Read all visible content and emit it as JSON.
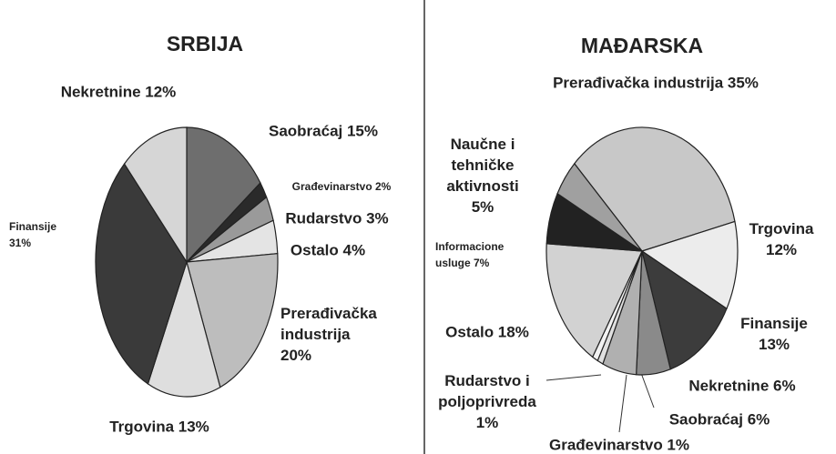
{
  "chart_data": [
    {
      "type": "pie",
      "title": "SRBIJA",
      "labels": [
        "Saobraćaj 15%",
        "Građevinarstvo 2%",
        "Rudarstvo 3%",
        "Ostalo 4%",
        "Prerađivačka\nindustrija\n20%",
        "Trgovina 13%",
        "Finansije\n31%",
        "Nekretnine 12%"
      ],
      "values": [
        15,
        2,
        3,
        4,
        20,
        13,
        31,
        12
      ],
      "colors": [
        "#6e6e6e",
        "#2a2a2a",
        "#9a9a9a",
        "#e4e4e4",
        "#bdbdbd",
        "#dedede",
        "#3a3a3a",
        "#d6d6d6"
      ]
    },
    {
      "type": "pie",
      "title": "MAĐARSKA",
      "labels": [
        "Prerađivačka industrija 35%",
        "Trgovina\n12%",
        "Finansije\n13%",
        "Nekretnine 6%",
        "Saobraćaj 6%",
        "Građevinarstvo 1%",
        "Rudarstvo i\npoljoprivreda\n1%",
        "Ostalo 18%",
        "Informacione\nusluge 7%",
        "Naučne i\ntehničke\naktivnosti\n5%"
      ],
      "values": [
        35,
        12,
        13,
        6,
        6,
        1,
        1,
        18,
        7,
        5
      ],
      "colors": [
        "#c8c8c8",
        "#ececec",
        "#3c3c3c",
        "#8a8a8a",
        "#b0b0b0",
        "#e0e0e0",
        "#f2f2f2",
        "#d2d2d2",
        "#222222",
        "#a0a0a0"
      ]
    }
  ]
}
